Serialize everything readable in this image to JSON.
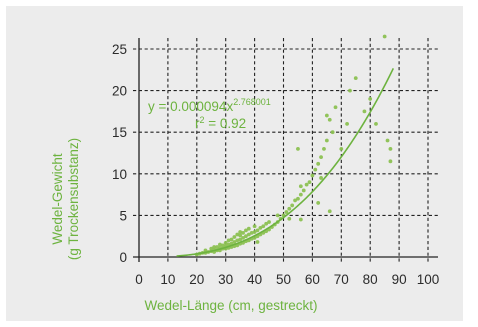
{
  "chart_data": {
    "type": "scatter",
    "title": "",
    "xlabel": "Wedel-Länge (cm, gestreckt)",
    "ylabel_line1": "Wedel-Gewicht",
    "ylabel_line2": "(g Trockensubstanz)",
    "xlim": [
      0,
      105
    ],
    "ylim": [
      0,
      27
    ],
    "xticks": [
      "0",
      "10",
      "20",
      "30",
      "40",
      "50",
      "60",
      "70",
      "80",
      "90",
      "100"
    ],
    "yticks": [
      "0",
      "5",
      "10",
      "15",
      "20",
      "25"
    ],
    "grid": true,
    "annotation": {
      "eq_prefix": "y = 0.000094x",
      "eq_exponent": "2.768001",
      "r2_prefix": "r",
      "r2_exp": "2",
      "r2_value": " = 0.92"
    },
    "fit": {
      "a": 9.4e-05,
      "b": 2.768001,
      "x_start": 13,
      "x_end": 88
    },
    "colors": {
      "points": "#8cc152",
      "line": "#6db33f",
      "grid": "#222222",
      "panel": "#ececec"
    },
    "series": [
      {
        "x": [
          20,
          21,
          22,
          23,
          23,
          24,
          25,
          25,
          26,
          26,
          27,
          27,
          28,
          28,
          28,
          29,
          29,
          30,
          30,
          30,
          31,
          31,
          31,
          32,
          32,
          32,
          33,
          33,
          33,
          34,
          34,
          34,
          35,
          35,
          35,
          35,
          36,
          36,
          36,
          37,
          37,
          37,
          38,
          38,
          38,
          39,
          39,
          40,
          40,
          40,
          41,
          41,
          41,
          42,
          42,
          43,
          43,
          44,
          44,
          45,
          45,
          46,
          47,
          48,
          48,
          49,
          50,
          51,
          52,
          52,
          53,
          54,
          55,
          56,
          56,
          57,
          58,
          59,
          60,
          61,
          62,
          63,
          63,
          64,
          65,
          65,
          66,
          66,
          67,
          68,
          70,
          72,
          73,
          75,
          78,
          80,
          82,
          85,
          86,
          87,
          87,
          62,
          55,
          56,
          26
        ],
        "y": [
          0.3,
          0.4,
          0.5,
          0.5,
          0.8,
          0.6,
          0.7,
          1.0,
          0.6,
          0.9,
          0.8,
          1.2,
          0.8,
          1.1,
          1.5,
          1.0,
          1.4,
          1.0,
          1.3,
          1.7,
          1.1,
          1.5,
          2.0,
          1.2,
          1.6,
          2.1,
          1.3,
          1.8,
          2.4,
          1.4,
          2.0,
          2.7,
          1.6,
          2.1,
          2.6,
          3.0,
          1.7,
          2.3,
          2.9,
          1.9,
          2.5,
          3.2,
          2.0,
          2.7,
          3.4,
          2.2,
          2.9,
          2.3,
          3.0,
          3.7,
          2.5,
          3.2,
          1.8,
          2.7,
          3.5,
          2.9,
          3.7,
          3.1,
          4.0,
          3.3,
          4.2,
          3.6,
          3.9,
          4.2,
          5.0,
          4.6,
          5.0,
          5.4,
          4.6,
          5.8,
          6.2,
          6.8,
          7.0,
          7.5,
          4.5,
          8.0,
          8.7,
          9.0,
          9.8,
          10.5,
          11.2,
          12.0,
          9.5,
          13.0,
          14.0,
          17.0,
          16.5,
          5.5,
          15.0,
          18.0,
          13.0,
          16.0,
          20.0,
          21.5,
          17.5,
          19.0,
          16.0,
          26.5,
          14.0,
          13.0,
          11.5,
          6.5,
          13.0,
          8.5,
          1.2
        ]
      }
    ]
  }
}
